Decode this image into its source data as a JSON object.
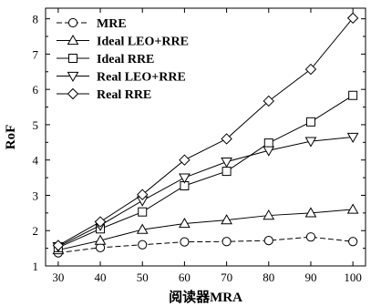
{
  "chart_data": {
    "type": "line",
    "title": "",
    "xlabel": "阅读器MRA",
    "ylabel": "RoF",
    "x": [
      30,
      40,
      50,
      60,
      70,
      80,
      90,
      100
    ],
    "xlim": [
      27,
      103
    ],
    "ylim": [
      1,
      8.3
    ],
    "x_ticks": [
      "30",
      "40",
      "50",
      "60",
      "70",
      "80",
      "90",
      "100"
    ],
    "y_ticks": [
      "1",
      "2",
      "3",
      "4",
      "5",
      "6",
      "7",
      "8"
    ],
    "grid": false,
    "legend_position": "top-left",
    "series": [
      {
        "name": "MRE",
        "marker": "circle",
        "dashed": true,
        "values": [
          1.37,
          1.52,
          1.6,
          1.68,
          1.69,
          1.72,
          1.82,
          1.69
        ]
      },
      {
        "name": "Ideal LEO+RRE",
        "marker": "triangle-up",
        "dashed": false,
        "values": [
          1.45,
          1.72,
          2.03,
          2.2,
          2.3,
          2.43,
          2.5,
          2.6
        ]
      },
      {
        "name": "Ideal RRE",
        "marker": "square",
        "dashed": false,
        "values": [
          1.52,
          2.05,
          2.53,
          3.27,
          3.68,
          4.48,
          5.08,
          5.83
        ]
      },
      {
        "name": "Real LEO+RRE",
        "marker": "triangle-down",
        "dashed": false,
        "values": [
          1.55,
          2.15,
          2.85,
          3.5,
          3.95,
          4.27,
          4.53,
          4.65
        ]
      },
      {
        "name": "Real RRE",
        "marker": "diamond",
        "dashed": false,
        "values": [
          1.58,
          2.25,
          3.02,
          4.0,
          4.6,
          5.67,
          6.57,
          8.02
        ]
      }
    ]
  }
}
